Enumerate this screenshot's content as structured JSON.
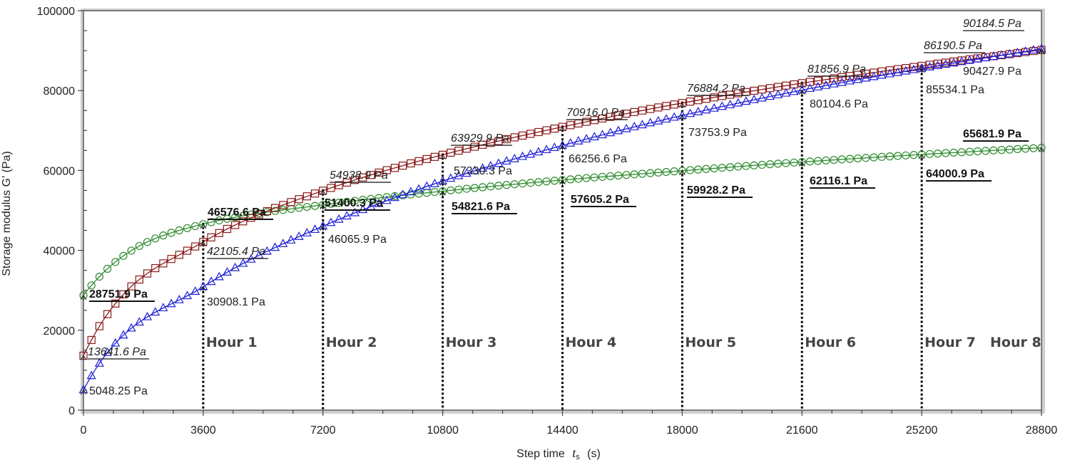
{
  "chart_data": {
    "type": "line",
    "title": "",
    "xlabel": "Step time t_s (s)",
    "ylabel": "Storage modulus G' (Pa)",
    "xlim": [
      0,
      28800
    ],
    "ylim": [
      0,
      100000
    ],
    "x_ticks": [
      0,
      3600,
      7200,
      10800,
      14400,
      18000,
      21600,
      25200,
      28800
    ],
    "y_ticks": [
      0,
      20000,
      40000,
      60000,
      80000,
      100000
    ],
    "grid": false,
    "legend": null,
    "x": [
      0,
      3600,
      7200,
      10800,
      14400,
      18000,
      21600,
      25200,
      28800
    ],
    "series": [
      {
        "name": "Green (circles)",
        "marker": "circle",
        "color": "#2e8b2e",
        "label_style": "bold-underline",
        "values": [
          28751.9,
          46576.6,
          51400.3,
          54821.6,
          57605.2,
          59928.2,
          62116.1,
          64000.9,
          65681.9
        ]
      },
      {
        "name": "Red (squares)",
        "marker": "square",
        "color": "#8b1a1a",
        "label_style": "italic-underline",
        "values": [
          13641.6,
          42105.4,
          54938.9,
          63929.9,
          70916.0,
          76884.2,
          81856.9,
          86190.5,
          90184.5
        ]
      },
      {
        "name": "Blue (triangles)",
        "marker": "triangle",
        "color": "#1f1fd6",
        "label_style": "plain",
        "values": [
          5048.25,
          30908.1,
          46065.9,
          57330.3,
          66256.6,
          73753.9,
          80104.6,
          85534.1,
          90427.9
        ]
      }
    ],
    "annotations": {
      "hour_markers": [
        {
          "label": "Hour 1",
          "x": 3600
        },
        {
          "label": "Hour 2",
          "x": 7200
        },
        {
          "label": "Hour 3",
          "x": 10800
        },
        {
          "label": "Hour 4",
          "x": 14400
        },
        {
          "label": "Hour 5",
          "x": 18000
        },
        {
          "label": "Hour 6",
          "x": 21600
        },
        {
          "label": "Hour 7",
          "x": 25200
        },
        {
          "label": "Hour 8",
          "x": 28800
        }
      ],
      "value_labels": [
        {
          "text": "28751.9 Pa",
          "series": 0,
          "x": 0
        },
        {
          "text": "46576.6 Pa",
          "series": 0,
          "x": 3600
        },
        {
          "text": "51400.3 Pa",
          "series": 0,
          "x": 7200
        },
        {
          "text": "54821.6 Pa",
          "series": 0,
          "x": 10800
        },
        {
          "text": "57605.2 Pa",
          "series": 0,
          "x": 14400
        },
        {
          "text": "59928.2 Pa",
          "series": 0,
          "x": 18000
        },
        {
          "text": "62116.1 Pa",
          "series": 0,
          "x": 21600
        },
        {
          "text": "64000.9 Pa",
          "series": 0,
          "x": 25200
        },
        {
          "text": "65681.9 Pa",
          "series": 0,
          "x": 28800
        },
        {
          "text": "13641.6 Pa",
          "series": 1,
          "x": 0
        },
        {
          "text": "42105.4 Pa",
          "series": 1,
          "x": 3600
        },
        {
          "text": "54938.9 Pa",
          "series": 1,
          "x": 7200
        },
        {
          "text": "63929.9 Pa",
          "series": 1,
          "x": 10800
        },
        {
          "text": "70916.0 Pa",
          "series": 1,
          "x": 14400
        },
        {
          "text": "76884.2 Pa",
          "series": 1,
          "x": 18000
        },
        {
          "text": "81856.9 Pa",
          "series": 1,
          "x": 21600
        },
        {
          "text": "86190.5 Pa",
          "series": 1,
          "x": 25200
        },
        {
          "text": "90184.5 Pa",
          "series": 1,
          "x": 28800
        },
        {
          "text": "5048.25 Pa",
          "series": 2,
          "x": 0
        },
        {
          "text": "30908.1 Pa",
          "series": 2,
          "x": 3600
        },
        {
          "text": "46065.9 Pa",
          "series": 2,
          "x": 7200
        },
        {
          "text": "57330.3 Pa",
          "series": 2,
          "x": 10800
        },
        {
          "text": "66256.6 Pa",
          "series": 2,
          "x": 14400
        },
        {
          "text": "73753.9 Pa",
          "series": 2,
          "x": 18000
        },
        {
          "text": "80104.6 Pa",
          "series": 2,
          "x": 21600
        },
        {
          "text": "85534.1 Pa",
          "series": 2,
          "x": 25200
        },
        {
          "text": "90427.9 Pa",
          "series": 2,
          "x": 28800
        }
      ]
    }
  },
  "axes": {
    "x_title_main": "Step time",
    "x_title_symbol": "t",
    "x_title_sub": "s",
    "x_title_unit": "(s)",
    "y_title": "Storage modulus  G'  (Pa)"
  }
}
